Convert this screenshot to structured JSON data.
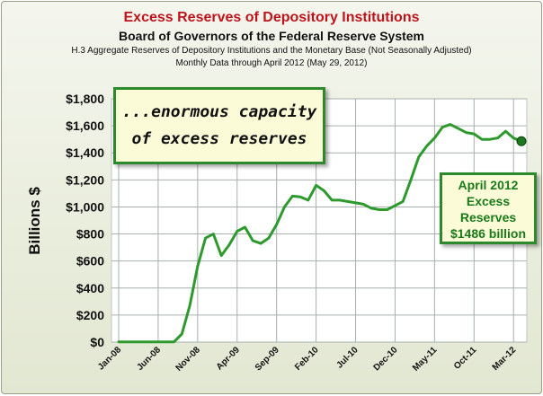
{
  "header": {
    "title": "Excess Reserves of Depository Institutions",
    "subtitle": "Board of Governors of the Federal Reserve System",
    "source_line": "H.3 Aggregate Reserves of Depository Institutions and the Monetary Base (Not Seasonally Adjusted)",
    "date_line": "Monthly Data through April 2012 (May 29, 2012)"
  },
  "annotation": {
    "line1": "...enormous capacity",
    "line2": "of excess  reserves"
  },
  "callout": {
    "lines": [
      "April 2012",
      "Excess",
      "Reserves",
      "$1486 billion"
    ]
  },
  "colors": {
    "title": "#c0141c",
    "line": "#2e9a2e",
    "grid": "#a6b0ae",
    "callout_text": "#1a7a1a",
    "box_border": "#2c8a2c",
    "box_fill": "#fbfbd8"
  },
  "chart_data": {
    "type": "line",
    "title": "Excess Reserves of Depository Institutions",
    "ylabel": "Billions $",
    "xlabel": "",
    "ylim": [
      0,
      1800
    ],
    "yticks": [
      0,
      200,
      400,
      600,
      800,
      1000,
      1200,
      1400,
      1600,
      1800
    ],
    "ytick_labels": [
      "$0",
      "$200",
      "$400",
      "$600",
      "$800",
      "$1,000",
      "$1,200",
      "$1,400",
      "$1,600",
      "$1,800"
    ],
    "xtick_labels": [
      "Jan-08",
      "Jun-08",
      "Nov-08",
      "Apr-09",
      "Sep-09",
      "Feb-10",
      "Jul-10",
      "Dec-10",
      "May-11",
      "Oct-11",
      "Mar-12"
    ],
    "grid": true,
    "legend": "none",
    "x": [
      "Jan-08",
      "Feb-08",
      "Mar-08",
      "Apr-08",
      "May-08",
      "Jun-08",
      "Jul-08",
      "Aug-08",
      "Sep-08",
      "Oct-08",
      "Nov-08",
      "Dec-08",
      "Jan-09",
      "Feb-09",
      "Mar-09",
      "Apr-09",
      "May-09",
      "Jun-09",
      "Jul-09",
      "Aug-09",
      "Sep-09",
      "Oct-09",
      "Nov-09",
      "Dec-09",
      "Jan-10",
      "Feb-10",
      "Mar-10",
      "Apr-10",
      "May-10",
      "Jun-10",
      "Jul-10",
      "Aug-10",
      "Sep-10",
      "Oct-10",
      "Nov-10",
      "Dec-10",
      "Jan-11",
      "Feb-11",
      "Mar-11",
      "Apr-11",
      "May-11",
      "Jun-11",
      "Jul-11",
      "Aug-11",
      "Sep-11",
      "Oct-11",
      "Nov-11",
      "Dec-11",
      "Jan-12",
      "Feb-12",
      "Mar-12",
      "Apr-12"
    ],
    "series": [
      {
        "values": [
          2,
          2,
          2,
          2,
          2,
          2,
          2,
          2,
          60,
          270,
          560,
          770,
          800,
          640,
          720,
          820,
          850,
          750,
          730,
          770,
          870,
          1000,
          1080,
          1075,
          1050,
          1160,
          1120,
          1050,
          1050,
          1040,
          1030,
          1020,
          990,
          980,
          980,
          1010,
          1040,
          1200,
          1370,
          1450,
          1510,
          1590,
          1610,
          1580,
          1550,
          1540,
          1500,
          1500,
          1510,
          1560,
          1510,
          1486
        ]
      }
    ]
  }
}
